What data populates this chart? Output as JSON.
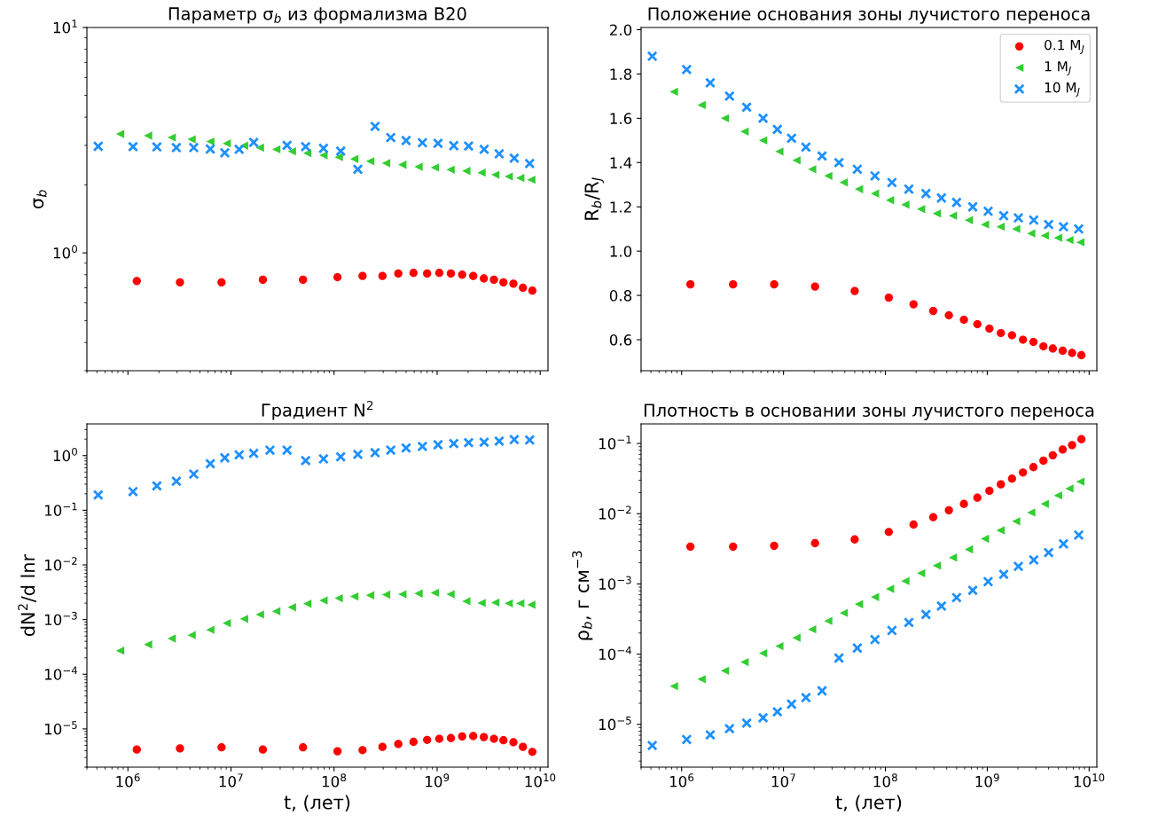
{
  "chart_data": [
    {
      "type": "scatter",
      "title": "Параметр σ$_{b}$ из формализма B20",
      "ylabel": "σ$_{b}$",
      "log": "xy",
      "grid": false,
      "legend": false,
      "tick_labels": "y",
      "xlim": [
        400000.0,
        11900000000.0
      ],
      "ylim": [
        0.3,
        10
      ],
      "yticks": [
        {
          "value": 1,
          "label": "10$^{0}$"
        },
        {
          "value": 10,
          "label": "10$^{1}$"
        }
      ],
      "series": [
        {
          "color": "#ff0000",
          "marker": "circle",
          "x": [
            1220000.0,
            3200000.0,
            8100000.0,
            20400000.0,
            50000000.0,
            108000000.0,
            189000000.0,
            295000000.0,
            420000000.0,
            590000000.0,
            800000000.0,
            1050000000.0,
            1360000000.0,
            1750000000.0,
            2240000000.0,
            2840000000.0,
            3560000000.0,
            4400000000.0,
            5500000000.0,
            6800000000.0,
            8400000000.0
          ],
          "values": [
            0.75,
            0.74,
            0.74,
            0.76,
            0.76,
            0.78,
            0.79,
            0.79,
            0.81,
            0.815,
            0.81,
            0.815,
            0.81,
            0.8,
            0.79,
            0.77,
            0.76,
            0.74,
            0.73,
            0.7,
            0.68
          ]
        },
        {
          "color": "#32cd32",
          "marker": "triangle",
          "x": [
            840000.0,
            1570000.0,
            2660000.0,
            4150000.0,
            6300000.0,
            9100000.0,
            13400000.0,
            19100000.0,
            27500000.0,
            39000000.0,
            55000000.0,
            79000000.0,
            111000000.0,
            157000000.0,
            224000000.0,
            320000000.0,
            460000000.0,
            660000000.0,
            950000000.0,
            1350000000.0,
            1920000000.0,
            2700000000.0,
            3670000000.0,
            4950000000.0,
            6400000000.0,
            8200000000.0
          ],
          "values": [
            3.37,
            3.31,
            3.25,
            3.19,
            3.12,
            3.06,
            2.99,
            2.93,
            2.88,
            2.82,
            2.77,
            2.71,
            2.66,
            2.61,
            2.55,
            2.5,
            2.46,
            2.41,
            2.39,
            2.34,
            2.31,
            2.27,
            2.22,
            2.18,
            2.15,
            2.11
          ]
        },
        {
          "color": "#1e90ff",
          "marker": "cross",
          "x": [
            515000.0,
            1120000.0,
            1910000.0,
            2950000.0,
            4350000.0,
            6300000.0,
            8700000.0,
            12000000.0,
            16600000.0,
            23900000.0,
            35000000.0,
            53000000.0,
            79000000.0,
            116000000.0,
            170000000.0,
            250000000.0,
            355000000.0,
            500000000.0,
            720000000.0,
            1020000000.0,
            1450000000.0,
            2020000000.0,
            2860000000.0,
            4000000000.0,
            5600000000.0,
            7900000000.0
          ],
          "values": [
            2.97,
            2.96,
            2.95,
            2.93,
            2.93,
            2.89,
            2.78,
            2.88,
            3.09,
            null,
            3.0,
            2.96,
            2.91,
            2.83,
            2.35,
            3.64,
            3.25,
            3.15,
            3.08,
            3.06,
            2.99,
            2.98,
            2.88,
            2.75,
            2.63,
            2.49
          ]
        }
      ]
    },
    {
      "type": "scatter",
      "title": "Положение основания зоны лучистого переноса",
      "ylabel": "R$_{b}$/R$_{J}$",
      "log": "x",
      "grid": false,
      "legend": "top right",
      "tick_labels": "y",
      "xlim": [
        400000.0,
        11900000000.0
      ],
      "ylim": [
        0.46,
        2.01
      ],
      "yticks": [
        {
          "value": 0.6,
          "label": "0.6"
        },
        {
          "value": 0.8,
          "label": "0.8"
        },
        {
          "value": 1.0,
          "label": "1.0"
        },
        {
          "value": 1.2,
          "label": "1.2"
        },
        {
          "value": 1.4,
          "label": "1.4"
        },
        {
          "value": 1.6,
          "label": "1.6"
        },
        {
          "value": 1.8,
          "label": "1.8"
        },
        {
          "value": 2.0,
          "label": "2.0"
        }
      ],
      "series": [
        {
          "name": "0.1 M$_{J}$",
          "color": "#ff0000",
          "marker": "circle",
          "x": [
            1220000.0,
            3200000.0,
            8100000.0,
            20400000.0,
            50000000.0,
            108000000.0,
            189000000.0,
            295000000.0,
            420000000.0,
            590000000.0,
            800000000.0,
            1050000000.0,
            1360000000.0,
            1750000000.0,
            2240000000.0,
            2840000000.0,
            3560000000.0,
            4400000000.0,
            5500000000.0,
            6800000000.0,
            8400000000.0
          ],
          "values": [
            0.85,
            0.85,
            0.85,
            0.84,
            0.82,
            0.79,
            0.76,
            0.73,
            0.71,
            0.69,
            0.67,
            0.65,
            0.63,
            0.62,
            0.6,
            0.59,
            0.57,
            0.56,
            0.55,
            0.54,
            0.53
          ]
        },
        {
          "name": "1 M$_{J}$",
          "color": "#32cd32",
          "marker": "triangle",
          "x": [
            840000.0,
            1570000.0,
            2660000.0,
            4150000.0,
            6300000.0,
            9100000.0,
            13400000.0,
            19100000.0,
            27500000.0,
            39000000.0,
            55000000.0,
            79000000.0,
            111000000.0,
            157000000.0,
            224000000.0,
            320000000.0,
            460000000.0,
            660000000.0,
            950000000.0,
            1350000000.0,
            1920000000.0,
            2700000000.0,
            3670000000.0,
            4950000000.0,
            6400000000.0,
            8200000000.0
          ],
          "values": [
            1.72,
            1.66,
            1.6,
            1.54,
            1.5,
            1.45,
            1.41,
            1.37,
            1.34,
            1.31,
            1.28,
            1.26,
            1.23,
            1.21,
            1.19,
            1.17,
            1.16,
            1.14,
            1.12,
            1.11,
            1.1,
            1.08,
            1.07,
            1.06,
            1.05,
            1.04
          ]
        },
        {
          "name": "10 M$_{J}$",
          "color": "#1e90ff",
          "marker": "cross",
          "x": [
            515000.0,
            1120000.0,
            1910000.0,
            2950000.0,
            4350000.0,
            6300000.0,
            8700000.0,
            12000000.0,
            16600000.0,
            23900000.0,
            35000000.0,
            53000000.0,
            79000000.0,
            116000000.0,
            170000000.0,
            250000000.0,
            355000000.0,
            500000000.0,
            720000000.0,
            1020000000.0,
            1450000000.0,
            2020000000.0,
            2860000000.0,
            4000000000.0,
            5600000000.0,
            7900000000.0
          ],
          "values": [
            1.88,
            1.82,
            1.76,
            1.7,
            1.65,
            1.6,
            1.55,
            1.51,
            1.47,
            1.43,
            1.4,
            1.37,
            1.34,
            1.31,
            1.28,
            1.26,
            1.24,
            1.22,
            1.2,
            1.18,
            1.16,
            1.15,
            1.14,
            1.12,
            1.11,
            1.1
          ]
        }
      ]
    },
    {
      "type": "scatter",
      "title": "Градиент N$^{2}$",
      "xlabel": "t, (лет)",
      "ylabel": "dN$^{2}$/d lnr",
      "log": "xy",
      "grid": false,
      "legend": false,
      "xlim": [
        400000.0,
        11900000000.0
      ],
      "ylim": [
        2e-06,
        3.8
      ],
      "xticks": [
        {
          "value": 1000000.0,
          "label": "10$^{6}$"
        },
        {
          "value": 10000000.0,
          "label": "10$^{7}$"
        },
        {
          "value": 100000000.0,
          "label": "10$^{8}$"
        },
        {
          "value": 1000000000.0,
          "label": "10$^{9}$"
        },
        {
          "value": 10000000000.0,
          "label": "10$^{10}$"
        }
      ],
      "yticks": [
        {
          "value": 1e-05,
          "label": "10$^{−5}$"
        },
        {
          "value": 0.0001,
          "label": "10$^{−4}$"
        },
        {
          "value": 0.001,
          "label": "10$^{−3}$"
        },
        {
          "value": 0.01,
          "label": "10$^{−2}$"
        },
        {
          "value": 0.1,
          "label": "10$^{−1}$"
        },
        {
          "value": 1,
          "label": "10$^{0}$"
        }
      ],
      "series": [
        {
          "color": "#ff0000",
          "marker": "circle",
          "x": [
            1220000.0,
            3200000.0,
            8100000.0,
            20400000.0,
            50000000.0,
            108000000.0,
            189000000.0,
            295000000.0,
            420000000.0,
            590000000.0,
            800000000.0,
            1050000000.0,
            1360000000.0,
            1750000000.0,
            2240000000.0,
            2840000000.0,
            3560000000.0,
            4400000000.0,
            5500000000.0,
            6800000000.0,
            8400000000.0
          ],
          "values": [
            4.2e-06,
            4.4e-06,
            4.6e-06,
            4.2e-06,
            4.6e-06,
            3.9e-06,
            4.1e-06,
            4.7e-06,
            5.3e-06,
            5.8e-06,
            6.3e-06,
            6.6e-06,
            6.8e-06,
            7.3e-06,
            7.4e-06,
            7.1e-06,
            6.6e-06,
            6.2e-06,
            5.7e-06,
            4.7e-06,
            3.8e-06
          ]
        },
        {
          "color": "#32cd32",
          "marker": "triangle",
          "x": [
            840000.0,
            1570000.0,
            2660000.0,
            4150000.0,
            6300000.0,
            9100000.0,
            13400000.0,
            19100000.0,
            27500000.0,
            39000000.0,
            55000000.0,
            79000000.0,
            111000000.0,
            157000000.0,
            224000000.0,
            320000000.0,
            460000000.0,
            660000000.0,
            950000000.0,
            1350000000.0,
            1920000000.0,
            2700000000.0,
            3670000000.0,
            4950000000.0,
            6400000000.0,
            8200000000.0
          ],
          "values": [
            0.00027,
            0.00035,
            0.00045,
            0.00052,
            0.00065,
            0.00086,
            0.00103,
            0.00124,
            0.00142,
            0.00168,
            0.00195,
            0.00224,
            0.00246,
            0.00265,
            0.00278,
            0.00286,
            0.00291,
            0.003,
            0.00309,
            0.00291,
            0.00217,
            0.00201,
            0.00205,
            0.00198,
            0.00198,
            0.00187
          ]
        },
        {
          "color": "#1e90ff",
          "marker": "cross",
          "x": [
            515000.0,
            1120000.0,
            1910000.0,
            2950000.0,
            4350000.0,
            6300000.0,
            8700000.0,
            12000000.0,
            16600000.0,
            23900000.0,
            35000000.0,
            53000000.0,
            79000000.0,
            116000000.0,
            170000000.0,
            250000000.0,
            355000000.0,
            500000000.0,
            720000000.0,
            1020000000.0,
            1450000000.0,
            2020000000.0,
            2860000000.0,
            4000000000.0,
            5600000000.0,
            7900000000.0
          ],
          "values": [
            0.19,
            0.22,
            0.28,
            0.34,
            0.46,
            0.71,
            0.91,
            1.03,
            1.1,
            1.26,
            1.26,
            0.81,
            0.87,
            0.95,
            1.05,
            1.13,
            1.26,
            1.38,
            1.47,
            1.58,
            1.66,
            1.73,
            1.76,
            1.84,
            1.96,
            1.93
          ]
        }
      ]
    },
    {
      "type": "scatter",
      "title": "Плотность в основании зоны лучистого переноса",
      "xlabel": "t, (лет)",
      "ylabel": "ρ$_{b}$, г см$^{−3}$",
      "log": "xy",
      "grid": false,
      "legend": false,
      "xlim": [
        400000.0,
        11900000000.0
      ],
      "ylim": [
        2.46e-06,
        0.19
      ],
      "xticks": [
        {
          "value": 1000000.0,
          "label": "10$^{6}$"
        },
        {
          "value": 10000000.0,
          "label": "10$^{7}$"
        },
        {
          "value": 100000000.0,
          "label": "10$^{8}$"
        },
        {
          "value": 1000000000.0,
          "label": "10$^{9}$"
        },
        {
          "value": 10000000000.0,
          "label": "10$^{10}$"
        }
      ],
      "yticks": [
        {
          "value": 1e-05,
          "label": "10$^{−5}$"
        },
        {
          "value": 0.0001,
          "label": "10$^{−4}$"
        },
        {
          "value": 0.001,
          "label": "10$^{−3}$"
        },
        {
          "value": 0.01,
          "label": "10$^{−2}$"
        },
        {
          "value": 0.1,
          "label": "10$^{−1}$"
        }
      ],
      "series": [
        {
          "color": "#ff0000",
          "marker": "circle",
          "x": [
            1220000.0,
            3200000.0,
            8100000.0,
            20400000.0,
            50000000.0,
            108000000.0,
            189000000.0,
            295000000.0,
            420000000.0,
            590000000.0,
            800000000.0,
            1050000000.0,
            1360000000.0,
            1750000000.0,
            2240000000.0,
            2840000000.0,
            3560000000.0,
            4400000000.0,
            5500000000.0,
            6800000000.0,
            8400000000.0
          ],
          "values": [
            0.0034,
            0.0034,
            0.0035,
            0.0038,
            0.0043,
            0.0055,
            0.007,
            0.0089,
            0.0112,
            0.0138,
            0.0169,
            0.0212,
            0.0262,
            0.0316,
            0.0386,
            0.046,
            0.057,
            0.068,
            0.082,
            0.095,
            0.115
          ]
        },
        {
          "color": "#32cd32",
          "marker": "triangle",
          "x": [
            840000.0,
            1570000.0,
            2660000.0,
            4150000.0,
            6300000.0,
            9100000.0,
            13400000.0,
            19100000.0,
            27500000.0,
            39000000.0,
            55000000.0,
            79000000.0,
            111000000.0,
            157000000.0,
            224000000.0,
            320000000.0,
            460000000.0,
            660000000.0,
            950000000.0,
            1350000000.0,
            1920000000.0,
            2700000000.0,
            3670000000.0,
            4950000000.0,
            6400000000.0,
            8200000000.0
          ],
          "values": [
            3.5e-05,
            4.4e-05,
            5.8e-05,
            7.7e-05,
            0.000103,
            0.00013,
            0.000171,
            0.000225,
            0.000297,
            0.000386,
            0.000515,
            0.00065,
            0.00085,
            0.0011,
            0.00142,
            0.00182,
            0.00237,
            0.0031,
            0.0044,
            0.0058,
            0.0078,
            0.0104,
            0.0138,
            0.0182,
            0.0228,
            0.0286
          ]
        },
        {
          "color": "#1e90ff",
          "marker": "cross",
          "x": [
            515000.0,
            1120000.0,
            1910000.0,
            2950000.0,
            4350000.0,
            6300000.0,
            8700000.0,
            12000000.0,
            16600000.0,
            23900000.0,
            35000000.0,
            53000000.0,
            79000000.0,
            116000000.0,
            170000000.0,
            250000000.0,
            355000000.0,
            500000000.0,
            720000000.0,
            1020000000.0,
            1450000000.0,
            2020000000.0,
            2860000000.0,
            4000000000.0,
            5600000000.0,
            7900000000.0
          ],
          "values": [
            5e-06,
            6.1e-06,
            7.1e-06,
            8.7e-06,
            1.04e-05,
            1.24e-05,
            1.51e-05,
            1.94e-05,
            2.4e-05,
            3e-05,
            8.8e-05,
            0.000122,
            0.000161,
            0.000217,
            0.000283,
            0.000367,
            0.000484,
            0.00064,
            0.00081,
            0.00108,
            0.00137,
            0.00178,
            0.0022,
            0.00279,
            0.00372,
            0.00497
          ]
        }
      ]
    }
  ]
}
